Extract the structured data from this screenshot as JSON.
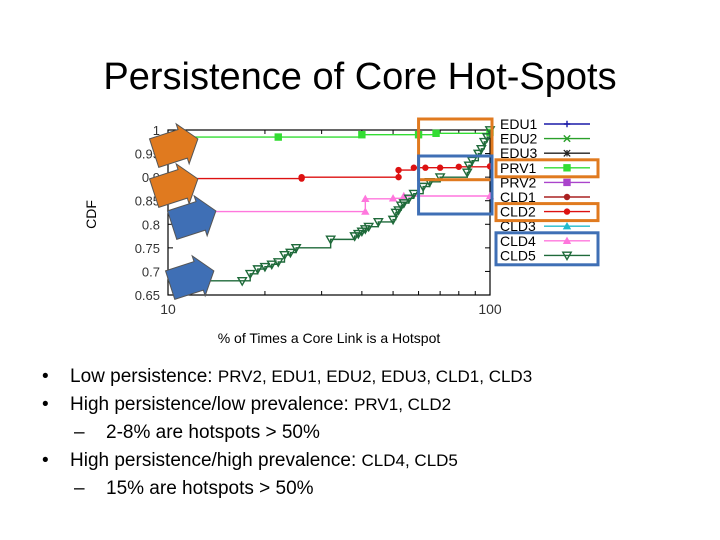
{
  "slide": {
    "title": "Persistence of Core Hot-Spots",
    "bullets": [
      {
        "lead": "Low persistence: ",
        "apps": "PRV2, EDU1, EDU2, EDU3, CLD1, CLD3"
      },
      {
        "lead": "High persistence/low prevalence: ",
        "apps": "PRV1, CLD2"
      },
      {
        "sub": "2-8% are hotspots > 50%"
      },
      {
        "lead": "High persistence/high prevalence: ",
        "apps": "CLD4, CLD5"
      },
      {
        "sub": "15% are hotspots > 50%"
      }
    ],
    "bullet_char": "•",
    "dash_char": "–"
  },
  "colors": {
    "arrow_orange": "#e07a1f",
    "arrow_blue": "#3f6fb5",
    "box_orange": "#e07a1f",
    "box_blue": "#3f6fb5"
  },
  "chart_data": {
    "type": "line",
    "xlabel": "% of Times a Core Link is a Hotspot",
    "ylabel": "CDF",
    "xscale": "log",
    "xlim": [
      10,
      100
    ],
    "ylim": [
      0.65,
      1.0
    ],
    "xticks": [
      {
        "v": 10,
        "label": "10"
      },
      {
        "v": 100,
        "label": "100"
      }
    ],
    "yticks": [
      {
        "v": 1.0,
        "label": "1"
      },
      {
        "v": 0.95,
        "label": "0.95"
      },
      {
        "v": 0.9,
        "label": "0.9"
      },
      {
        "v": 0.85,
        "label": "0.85"
      },
      {
        "v": 0.8,
        "label": "0.8"
      },
      {
        "v": 0.75,
        "label": "0.75"
      },
      {
        "v": 0.7,
        "label": "0.7"
      },
      {
        "v": 0.65,
        "label": "0.65"
      }
    ],
    "legend_position": "right",
    "series": [
      {
        "name": "EDU1",
        "color": "#1a1aa8",
        "marker": "plus",
        "x": [],
        "y": []
      },
      {
        "name": "EDU2",
        "color": "#2aa02a",
        "marker": "x",
        "x": [],
        "y": []
      },
      {
        "name": "EDU3",
        "color": "#222222",
        "marker": "star",
        "x": [],
        "y": []
      },
      {
        "name": "PRV1",
        "color": "#33dd33",
        "marker": "square",
        "x": [
          10,
          22,
          40,
          60,
          68,
          100
        ],
        "y": [
          0.985,
          0.985,
          0.99,
          0.99,
          0.993,
          0.995
        ]
      },
      {
        "name": "PRV2",
        "color": "#aa44cc",
        "marker": "square",
        "x": [],
        "y": []
      },
      {
        "name": "CLD1",
        "color": "#aa2222",
        "marker": "dot",
        "x": [],
        "y": []
      },
      {
        "name": "CLD2",
        "color": "#dd1111",
        "marker": "dot",
        "x": [
          10,
          26,
          26,
          52,
          52,
          58,
          63,
          70,
          80,
          100
        ],
        "y": [
          0.897,
          0.897,
          0.9,
          0.9,
          0.915,
          0.92,
          0.92,
          0.92,
          0.922,
          0.923
        ]
      },
      {
        "name": "CLD3",
        "color": "#22bbcc",
        "marker": "triangle-up",
        "x": [],
        "y": []
      },
      {
        "name": "CLD4",
        "color": "#ff77dd",
        "marker": "triangle-up",
        "x": [
          10,
          41,
          41,
          50,
          54,
          100
        ],
        "y": [
          0.827,
          0.827,
          0.854,
          0.855,
          0.86,
          0.86
        ]
      },
      {
        "name": "CLD5",
        "color": "#1f6a3a",
        "marker": "triangle-down",
        "x": [
          10,
          17,
          18,
          19,
          20,
          21,
          22,
          23,
          24,
          25,
          32,
          38,
          39,
          40,
          41,
          42,
          45,
          50,
          51,
          52,
          53,
          54,
          56,
          58,
          62,
          65,
          70,
          85,
          86,
          88,
          92,
          94,
          96,
          98,
          100
        ],
        "y": [
          0.68,
          0.68,
          0.695,
          0.705,
          0.71,
          0.715,
          0.72,
          0.735,
          0.74,
          0.75,
          0.768,
          0.775,
          0.78,
          0.785,
          0.79,
          0.795,
          0.805,
          0.81,
          0.825,
          0.83,
          0.84,
          0.845,
          0.855,
          0.865,
          0.88,
          0.89,
          0.9,
          0.91,
          0.925,
          0.935,
          0.95,
          0.96,
          0.975,
          0.985,
          1.0
        ]
      }
    ]
  }
}
